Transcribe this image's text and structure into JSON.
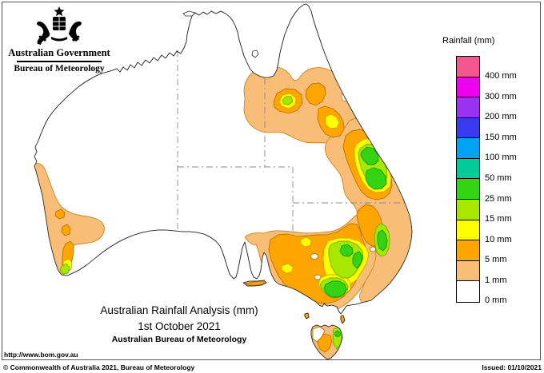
{
  "header": {
    "gov_title": "Australian Government",
    "bureau_title": "Bureau of Meteorology"
  },
  "legend": {
    "title": "Rainfall (mm)",
    "entries": [
      {
        "color": "#f4578e",
        "label": "400 mm"
      },
      {
        "color": "#ee00ee",
        "label": "300 mm"
      },
      {
        "color": "#9933f0",
        "label": "200 mm"
      },
      {
        "color": "#3a3af0",
        "label": "150 mm"
      },
      {
        "color": "#00a2f5",
        "label": "100 mm"
      },
      {
        "color": "#00cc99",
        "label": "50 mm"
      },
      {
        "color": "#33d411",
        "label": "25 mm"
      },
      {
        "color": "#a6e800",
        "label": "15 mm"
      },
      {
        "color": "#ffff00",
        "label": "10 mm"
      },
      {
        "color": "#ffa500",
        "label": "5 mm"
      },
      {
        "color": "#f8be77",
        "label": "1 mm"
      },
      {
        "color": "#ffffff",
        "label": "0 mm"
      }
    ]
  },
  "map": {
    "title_line1": "Australian Rainfall Analysis (mm)",
    "title_line2": "1st October 2021",
    "title_line3": "Australian Bureau of Meteorology",
    "url": "http://www.bom.gov.au"
  },
  "footer": {
    "copyright": "© Commonwealth of Australia 2021, Bureau of Meteorology",
    "issued": "Issued: 01/10/2021"
  }
}
